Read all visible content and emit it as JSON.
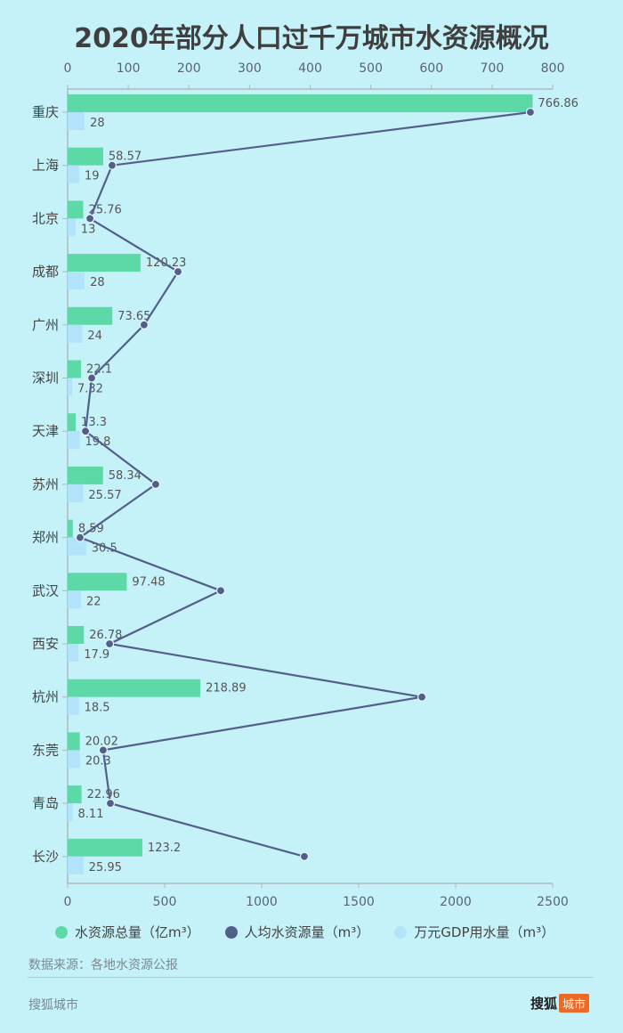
{
  "title": "2020年部分人口过千万城市水资源概况",
  "legend": [
    {
      "label": "水资源总量（亿m³）",
      "color": "#5dd9a8"
    },
    {
      "label": "人均水资源量（m³）",
      "color": "#525f8a"
    },
    {
      "label": "万元GDP用水量（m³）",
      "color": "#b3e3fa"
    }
  ],
  "source": "数据来源：各地水资源公报",
  "footer": {
    "left": "搜狐城市",
    "brand_main": "搜狐",
    "brand_tag": "城市"
  },
  "colors": {
    "background": "#c5f1f9",
    "total": "#5dd9a8",
    "per_capita": "#525f8a",
    "gdp_water": "#b3e3fa",
    "axis": "#aeb8bf"
  },
  "chart_data": {
    "type": "bar",
    "title": "2020年部分人口过千万城市水资源概况",
    "orientation": "horizontal",
    "categories": [
      "重庆",
      "上海",
      "北京",
      "成都",
      "广州",
      "深圳",
      "天津",
      "苏州",
      "郑州",
      "武汉",
      "西安",
      "杭州",
      "东莞",
      "青岛",
      "长沙"
    ],
    "top_axis": {
      "min": 0,
      "max": 800,
      "ticks": [
        0,
        100,
        200,
        300,
        400,
        500,
        600,
        700,
        800
      ]
    },
    "bottom_axis": {
      "min": 0,
      "max": 2500,
      "ticks": [
        0,
        500,
        1000,
        1500,
        2000,
        2500
      ]
    },
    "series": [
      {
        "name": "水资源总量（亿m³）",
        "type": "bar",
        "axis": "top",
        "color": "#5dd9a8",
        "values": [
          766.86,
          58.57,
          25.76,
          120.23,
          73.65,
          22.1,
          13.3,
          58.34,
          8.59,
          97.48,
          26.78,
          218.89,
          20.02,
          22.96,
          123.2
        ],
        "labels": [
          "766.86",
          "58.57",
          "25.76",
          "120.23",
          "73.65",
          "22.1",
          "13.3",
          "58.34",
          "8.59",
          "97.48",
          "26.78",
          "218.89",
          "20.02",
          "22.96",
          "123.2"
        ]
      },
      {
        "name": "万元GDP用水量（m³）",
        "type": "bar",
        "axis": "top",
        "color": "#b3e3fa",
        "values": [
          28,
          19,
          13,
          28,
          24,
          7.32,
          19.8,
          25.57,
          30.5,
          22,
          17.9,
          18.5,
          20.3,
          8.11,
          25.95
        ],
        "labels": [
          "28",
          "19",
          "13",
          "28",
          "24",
          "7.32",
          "19.8",
          "25.57",
          "30.5",
          "22",
          "17.9",
          "18.5",
          "20.3",
          "8.11",
          "25.95"
        ]
      },
      {
        "name": "人均水资源量（m³）",
        "type": "line",
        "axis": "bottom",
        "color": "#525f8a",
        "values": [
          2385,
          229,
          115,
          569,
          394,
          124,
          92,
          454,
          64,
          789,
          216,
          1826,
          183,
          220,
          1220
        ]
      }
    ],
    "legend_position": "bottom",
    "grid": false
  }
}
